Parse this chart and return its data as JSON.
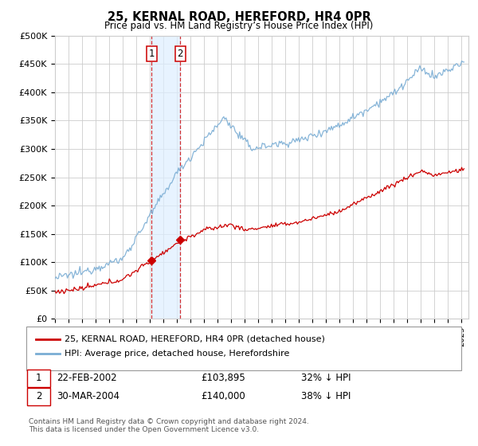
{
  "title": "25, KERNAL ROAD, HEREFORD, HR4 0PR",
  "subtitle": "Price paid vs. HM Land Registry’s House Price Index (HPI)",
  "yticks": [
    0,
    50000,
    100000,
    150000,
    200000,
    250000,
    300000,
    350000,
    400000,
    450000,
    500000
  ],
  "ytick_labels": [
    "£0",
    "£50K",
    "£100K",
    "£150K",
    "£200K",
    "£250K",
    "£300K",
    "£350K",
    "£400K",
    "£450K",
    "£500K"
  ],
  "xmin": 1995.0,
  "xmax": 2025.5,
  "ymin": 0,
  "ymax": 500000,
  "hpi_color": "#7aadd4",
  "property_color": "#cc0000",
  "marker_color": "#cc0000",
  "shade_color": "#ddeeff",
  "vline_color": "#cc0000",
  "grid_color": "#cccccc",
  "bg_color": "#ffffff",
  "legend_entry1": "25, KERNAL ROAD, HEREFORD, HR4 0PR (detached house)",
  "legend_entry2": "HPI: Average price, detached house, Herefordshire",
  "transactions": [
    {
      "num": 1,
      "date": "22-FEB-2002",
      "price": "£103,895",
      "pct": "32% ↓ HPI"
    },
    {
      "num": 2,
      "date": "30-MAR-2004",
      "price": "£140,000",
      "pct": "38% ↓ HPI"
    }
  ],
  "footnote1": "Contains HM Land Registry data © Crown copyright and database right 2024.",
  "footnote2": "This data is licensed under the Open Government Licence v3.0.",
  "sale1_year": 2002.13,
  "sale1_price": 103895,
  "sale2_year": 2004.24,
  "sale2_price": 140000
}
